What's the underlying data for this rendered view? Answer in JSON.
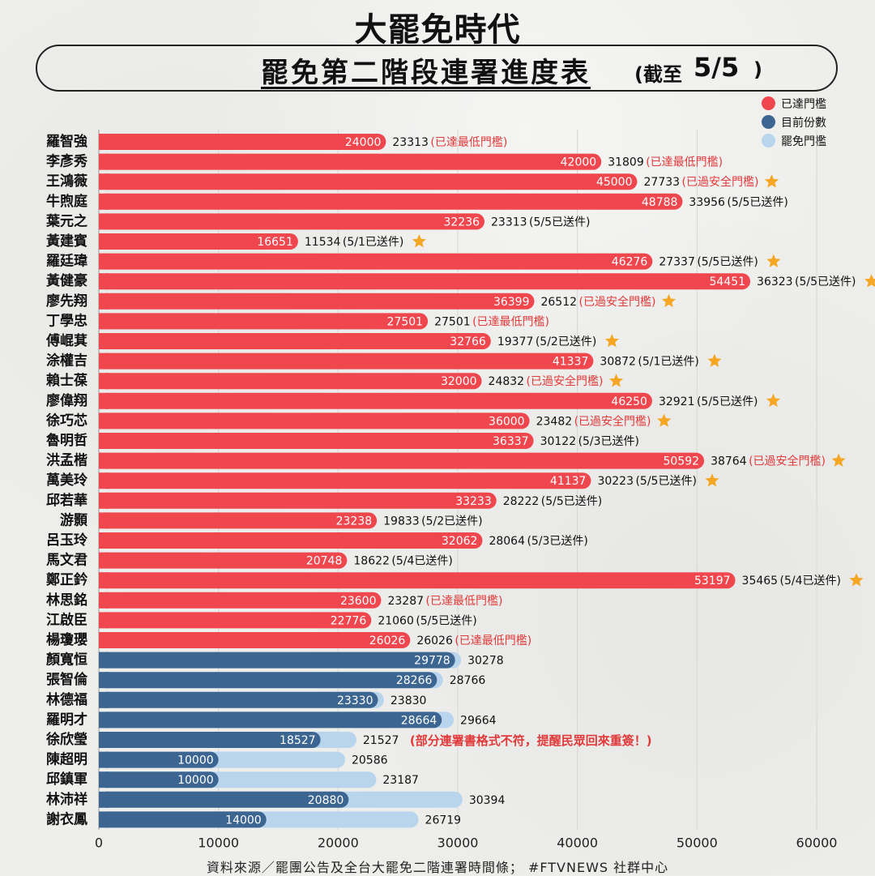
{
  "header": {
    "brand": "大罷免時代",
    "title": "罷免第二階段連署進度表",
    "paren_open": "(截至",
    "date": "5/5",
    "paren_close": ")"
  },
  "legend": [
    {
      "label": "已達門檻",
      "color": "#f0474f"
    },
    {
      "label": "目前份數",
      "color": "#3c6691"
    },
    {
      "label": "罷免門檻",
      "color": "#b9d5ee"
    }
  ],
  "source": "資料來源／罷團公告及全台大罷免二階連署時間條； #FTVNEWS 社群中心",
  "colors": {
    "reached": "#f0474f",
    "current": "#3c6691",
    "threshold": "#b9d5ee",
    "note_red": "#e23a3a",
    "star": "#f5a623"
  },
  "chart_data": {
    "type": "bar",
    "orientation": "horizontal",
    "xlim": [
      0,
      60000
    ],
    "x_ticks": [
      0,
      10000,
      20000,
      30000,
      40000,
      50000,
      60000
    ],
    "grid": true,
    "legend_position": "top-right",
    "reached": [
      {
        "name": "羅智強",
        "value": 24000,
        "threshold": 23313,
        "note": "(已達最低門檻)",
        "star": false
      },
      {
        "name": "李彥秀",
        "value": 42000,
        "threshold": 31809,
        "note": "(已達最低門檻)",
        "star": false
      },
      {
        "name": "王鴻薇",
        "value": 45000,
        "threshold": 27733,
        "note": "(已過安全門檻)",
        "star": true
      },
      {
        "name": "牛煦庭",
        "value": 48788,
        "threshold": 33956,
        "note": "(5/5已送件)",
        "star": false
      },
      {
        "name": "葉元之",
        "value": 32236,
        "threshold": 23313,
        "note": "(5/5已送件)",
        "star": false
      },
      {
        "name": "黃建賓",
        "value": 16651,
        "threshold": 11534,
        "note": "(5/1已送件)",
        "star": true
      },
      {
        "name": "羅廷瑋",
        "value": 46276,
        "threshold": 27337,
        "note": "(5/5已送件)",
        "star": true
      },
      {
        "name": "黃健豪",
        "value": 54451,
        "threshold": 36323,
        "note": "(5/5已送件)",
        "star": true
      },
      {
        "name": "廖先翔",
        "value": 36399,
        "threshold": 26512,
        "note": "(已過安全門檻)",
        "star": true
      },
      {
        "name": "丁學忠",
        "value": 27501,
        "threshold": 27501,
        "note": "(已達最低門檻)",
        "star": false
      },
      {
        "name": "傅崐萁",
        "value": 32766,
        "threshold": 19377,
        "note": "(5/2已送件)",
        "star": true
      },
      {
        "name": "涂權吉",
        "value": 41337,
        "threshold": 30872,
        "note": "(5/1已送件)",
        "star": true
      },
      {
        "name": "賴士葆",
        "value": 32000,
        "threshold": 24832,
        "note": "(已過安全門檻)",
        "star": true
      },
      {
        "name": "廖偉翔",
        "value": 46250,
        "threshold": 32921,
        "note": "(5/5已送件)",
        "star": true
      },
      {
        "name": "徐巧芯",
        "value": 36000,
        "threshold": 23482,
        "note": "(已過安全門檻)",
        "star": true
      },
      {
        "name": "魯明哲",
        "value": 36337,
        "threshold": 30122,
        "note": "(5/3已送件)",
        "star": false
      },
      {
        "name": "洪孟楷",
        "value": 50592,
        "threshold": 38764,
        "note": "(已過安全門檻)",
        "star": true
      },
      {
        "name": "萬美玲",
        "value": 41137,
        "threshold": 30223,
        "note": "(5/5已送件)",
        "star": true
      },
      {
        "name": "邱若華",
        "value": 33233,
        "threshold": 28222,
        "note": "(5/5已送件)",
        "star": false
      },
      {
        "name": "游顥",
        "value": 23238,
        "threshold": 19833,
        "note": "(5/2已送件)",
        "star": false
      },
      {
        "name": "呂玉玲",
        "value": 32062,
        "threshold": 28064,
        "note": "(5/3已送件)",
        "star": false
      },
      {
        "name": "馬文君",
        "value": 20748,
        "threshold": 18622,
        "note": "(5/4已送件)",
        "star": false
      },
      {
        "name": "鄭正鈐",
        "value": 53197,
        "threshold": 35465,
        "note": "(5/4已送件)",
        "star": true
      },
      {
        "name": "林思銘",
        "value": 23600,
        "threshold": 23287,
        "note": "(已達最低門檻)",
        "star": false
      },
      {
        "name": "江啟臣",
        "value": 22776,
        "threshold": 21060,
        "note": "(5/5已送件)",
        "star": false
      },
      {
        "name": "楊瓊瓔",
        "value": 26026,
        "threshold": 26026,
        "note": "(已達最低門檻)",
        "star": false
      }
    ],
    "in_progress": [
      {
        "name": "顏寬恒",
        "value": 29778,
        "threshold": 30278,
        "note": ""
      },
      {
        "name": "張智倫",
        "value": 28266,
        "threshold": 28766,
        "note": ""
      },
      {
        "name": "林德福",
        "value": 23330,
        "threshold": 23830,
        "note": ""
      },
      {
        "name": "羅明才",
        "value": 28664,
        "threshold": 29664,
        "note": ""
      },
      {
        "name": "徐欣瑩",
        "value": 18527,
        "threshold": 21527,
        "note": "(部分連署書格式不符，提醒民眾回來重簽！)"
      },
      {
        "name": "陳超明",
        "value": 10000,
        "threshold": 20586,
        "note": ""
      },
      {
        "name": "邱鎮軍",
        "value": 10000,
        "threshold": 23187,
        "note": ""
      },
      {
        "name": "林沛祥",
        "value": 20880,
        "threshold": 30394,
        "note": ""
      },
      {
        "name": "謝衣鳳",
        "value": 14000,
        "threshold": 26719,
        "note": ""
      }
    ]
  }
}
